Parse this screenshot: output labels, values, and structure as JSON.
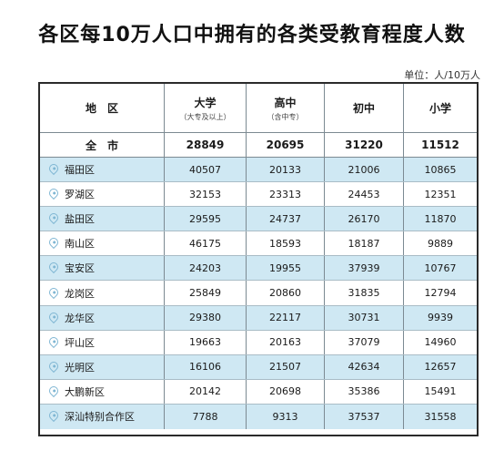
{
  "title": "各区每10万人口中拥有的各类受教育程度人数",
  "unit": "单位：人/10万人",
  "header": {
    "region": "地　区",
    "university": "大学",
    "university_sub": "（大专及以上）",
    "highschool": "高中",
    "highschool_sub": "（含中专）",
    "middle": "初中",
    "primary": "小学"
  },
  "total": {
    "name": "全　市",
    "university": "28849",
    "highschool": "20695",
    "middle": "31220",
    "primary": "11512"
  },
  "rows": [
    {
      "name": "福田区",
      "university": "40507",
      "highschool": "20133",
      "middle": "21006",
      "primary": "10865"
    },
    {
      "name": "罗湖区",
      "university": "32153",
      "highschool": "23313",
      "middle": "24453",
      "primary": "12351"
    },
    {
      "name": "盐田区",
      "university": "29595",
      "highschool": "24737",
      "middle": "26170",
      "primary": "11870"
    },
    {
      "name": "南山区",
      "university": "46175",
      "highschool": "18593",
      "middle": "18187",
      "primary": "9889"
    },
    {
      "name": "宝安区",
      "university": "24203",
      "highschool": "19955",
      "middle": "37939",
      "primary": "10767"
    },
    {
      "name": "龙岗区",
      "university": "25849",
      "highschool": "20860",
      "middle": "31835",
      "primary": "12794"
    },
    {
      "name": "龙华区",
      "university": "29380",
      "highschool": "22117",
      "middle": "30731",
      "primary": "9939"
    },
    {
      "name": "坪山区",
      "university": "19663",
      "highschool": "20163",
      "middle": "37079",
      "primary": "14960"
    },
    {
      "name": "光明区",
      "university": "16106",
      "highschool": "21507",
      "middle": "42634",
      "primary": "12657"
    },
    {
      "name": "大鹏新区",
      "university": "20142",
      "highschool": "20698",
      "middle": "35386",
      "primary": "15491"
    },
    {
      "name": "深汕特别合作区",
      "university": "7788",
      "highschool": "9313",
      "middle": "37537",
      "primary": "31558"
    }
  ],
  "colors": {
    "shade": "#cfe8f3",
    "pin": "#7fb6d3",
    "border": "#2a2a2a"
  },
  "icons": {
    "row_marker": "location-pin-icon"
  }
}
